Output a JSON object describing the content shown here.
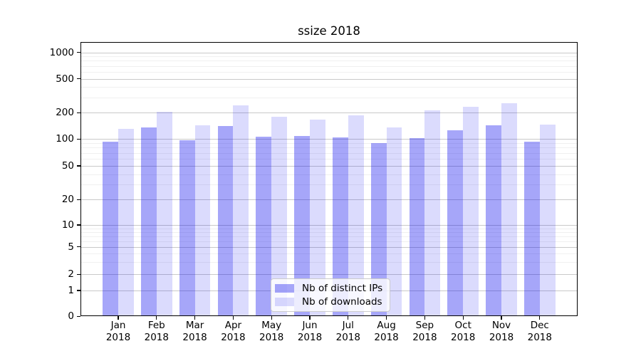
{
  "chart_data": {
    "type": "bar",
    "title": "ssize 2018",
    "x_categories": [
      "Jan",
      "Feb",
      "Mar",
      "Apr",
      "May",
      "Jun",
      "Jul",
      "Aug",
      "Sep",
      "Oct",
      "Nov",
      "Dec"
    ],
    "x_year_label": "2018",
    "series": [
      {
        "name": "Nb of distinct IPs",
        "color": "#0000ee",
        "alpha": 0.35,
        "values": [
          93,
          136,
          97,
          141,
          106,
          109,
          105,
          90,
          102,
          127,
          143,
          93
        ]
      },
      {
        "name": "Nb of downloads",
        "color": "#0000ee",
        "alpha": 0.14,
        "values": [
          131,
          206,
          143,
          242,
          179,
          167,
          186,
          136,
          212,
          236,
          258,
          147
        ]
      }
    ],
    "y_axis": {
      "scale": "symlog",
      "ticks": [
        0,
        1,
        2,
        5,
        10,
        20,
        50,
        100,
        200,
        500,
        1000
      ]
    },
    "x_axis": {
      "tick_label_format": "month newline year"
    },
    "grid": {
      "major": true,
      "minor": true
    },
    "legend": {
      "position": "lower center",
      "entries": [
        "Nb of distinct IPs",
        "Nb of downloads"
      ]
    }
  }
}
